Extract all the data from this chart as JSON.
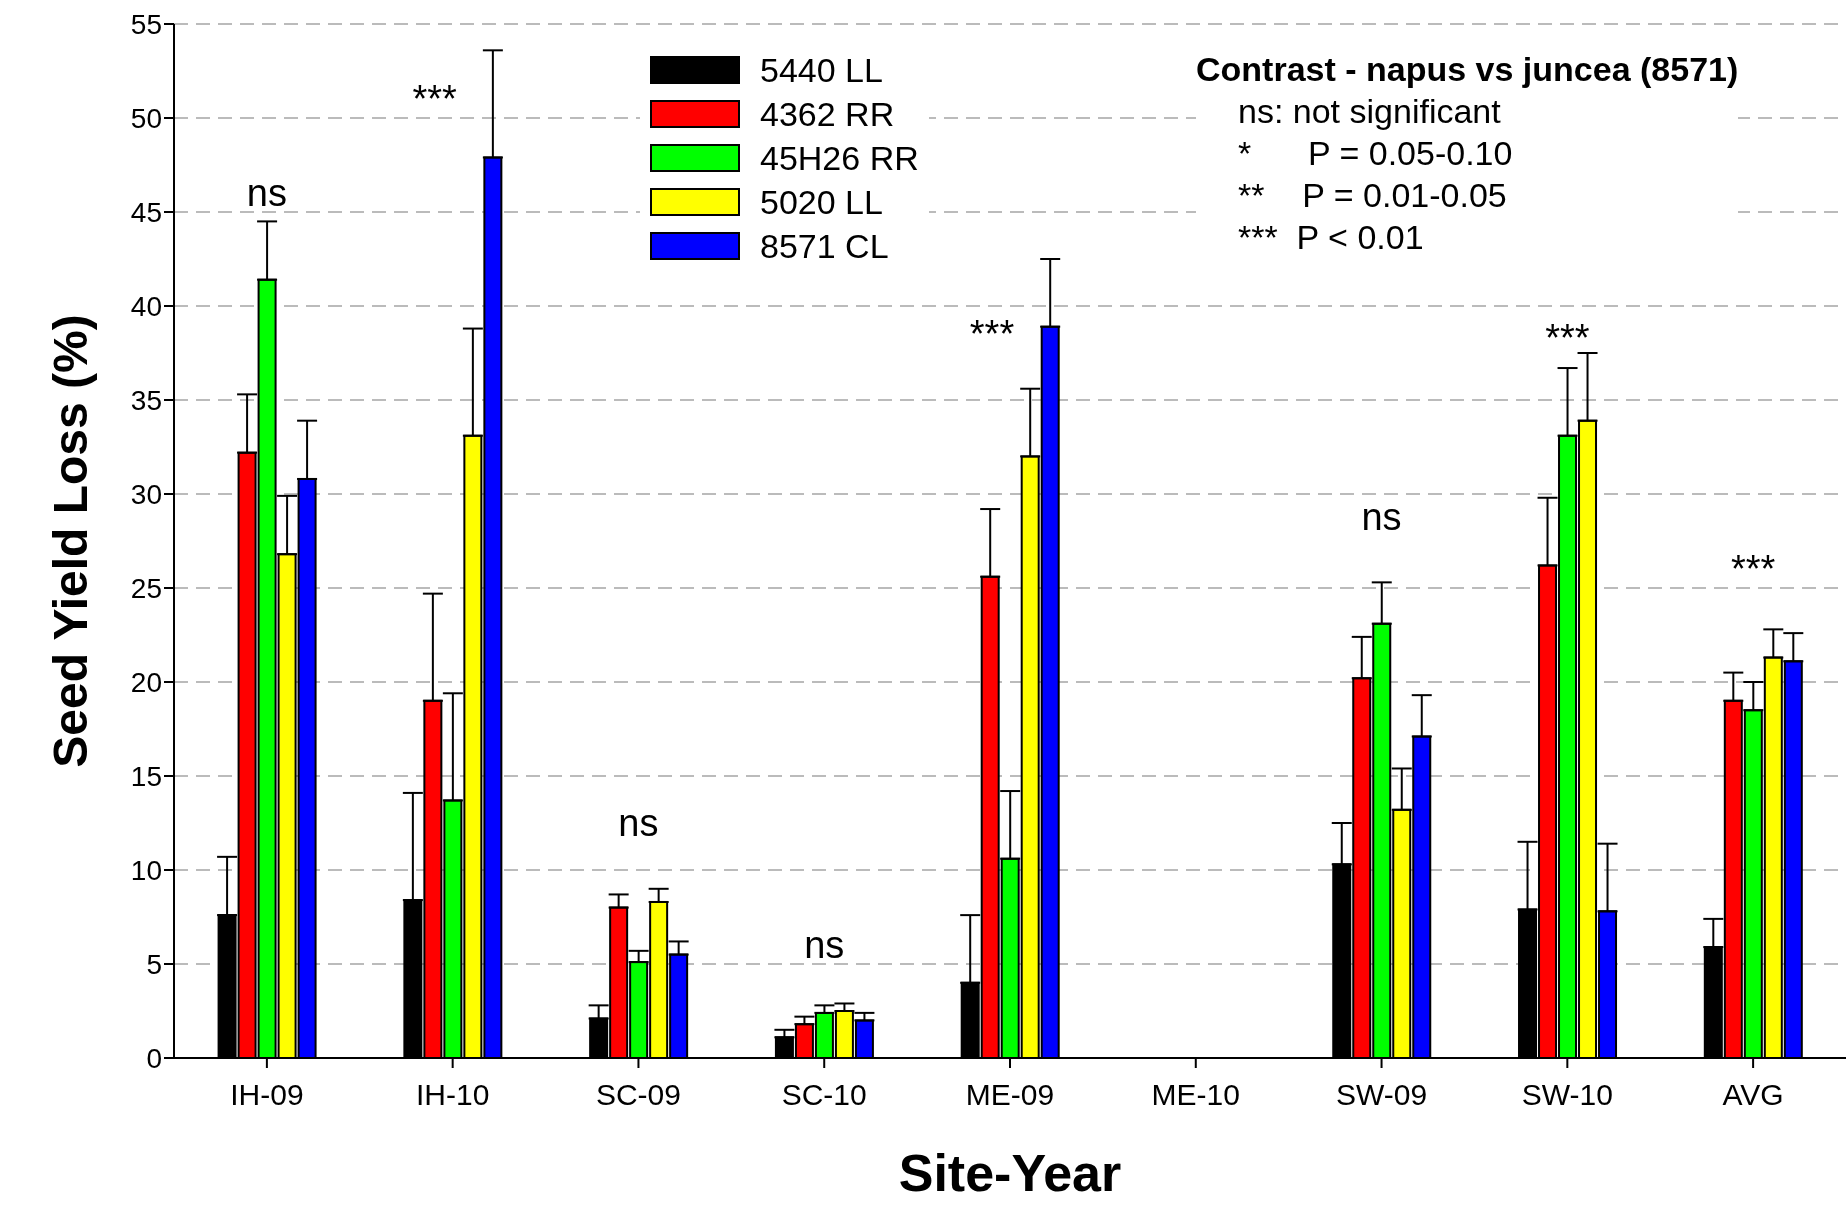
{
  "chart_data": {
    "type": "bar",
    "xlabel": "Site-Year",
    "ylabel": "Seed Yield Loss (%)",
    "categories": [
      "IH-09",
      "IH-10",
      "SC-09",
      "SC-10",
      "ME-09",
      "ME-10",
      "SW-09",
      "SW-10",
      "AVG"
    ],
    "series": [
      {
        "name": "5440 LL",
        "color": "#000000",
        "values": [
          7.6,
          8.4,
          2.1,
          1.1,
          4.0,
          null,
          10.3,
          7.9,
          5.9
        ],
        "errors": [
          [
            7.6,
            10.7
          ],
          [
            8.4,
            14.1
          ],
          [
            2.1,
            2.8
          ],
          [
            1.1,
            1.5
          ],
          [
            4.0,
            7.6
          ],
          null,
          [
            10.3,
            12.5
          ],
          [
            7.9,
            11.5
          ],
          [
            5.9,
            7.4
          ]
        ]
      },
      {
        "name": "4362 RR",
        "color": "#ff0000",
        "values": [
          32.2,
          19.0,
          8.0,
          1.8,
          25.6,
          null,
          20.2,
          26.2,
          19.0
        ],
        "errors": [
          [
            32.2,
            35.3
          ],
          [
            19.0,
            24.7
          ],
          [
            8.0,
            8.7
          ],
          [
            1.8,
            2.2
          ],
          [
            25.6,
            29.2
          ],
          null,
          [
            20.2,
            22.4
          ],
          [
            26.2,
            29.8
          ],
          [
            19.0,
            20.5
          ]
        ]
      },
      {
        "name": "45H26 RR",
        "color": "#00ff00",
        "values": [
          41.4,
          13.7,
          5.1,
          2.4,
          10.6,
          null,
          23.1,
          33.1,
          18.5
        ],
        "errors": [
          [
            41.4,
            44.5
          ],
          [
            13.7,
            19.4
          ],
          [
            5.1,
            5.7
          ],
          [
            2.4,
            2.8
          ],
          [
            10.6,
            14.2
          ],
          null,
          [
            23.1,
            25.3
          ],
          [
            33.1,
            36.7
          ],
          [
            18.5,
            20.0
          ]
        ]
      },
      {
        "name": "5020 LL",
        "color": "#ffff00",
        "values": [
          26.8,
          33.1,
          8.3,
          2.5,
          32.0,
          null,
          13.2,
          33.9,
          21.3
        ],
        "errors": [
          [
            26.8,
            29.9
          ],
          [
            33.1,
            38.8
          ],
          [
            8.3,
            9.0
          ],
          [
            2.5,
            2.9
          ],
          [
            32.0,
            35.6
          ],
          null,
          [
            13.2,
            15.4
          ],
          [
            33.9,
            37.5
          ],
          [
            21.3,
            22.8
          ]
        ]
      },
      {
        "name": "8571 CL",
        "color": "#0000ff",
        "values": [
          30.8,
          47.9,
          5.5,
          2.0,
          38.9,
          null,
          17.1,
          7.8,
          21.1
        ],
        "errors": [
          [
            30.8,
            33.9
          ],
          [
            47.9,
            53.6
          ],
          [
            5.5,
            6.2
          ],
          [
            2.0,
            2.4
          ],
          [
            38.9,
            42.5
          ],
          null,
          [
            17.1,
            19.3
          ],
          [
            7.8,
            11.4
          ],
          [
            21.1,
            22.6
          ]
        ]
      }
    ],
    "ylim": [
      0,
      55
    ],
    "yticks": [
      0,
      5,
      10,
      15,
      20,
      25,
      30,
      35,
      40,
      45,
      50,
      55
    ],
    "grid": "y",
    "legend": "top",
    "annotations": [
      "ns",
      "***",
      "ns",
      "ns",
      "***",
      "ns",
      "***",
      "***",
      "Contrast - napus vs juncea (8571)",
      "ns: not significant",
      "*      P = 0.05-0.10",
      "**    P = 0.01-0.05",
      "***  P < 0.01"
    ]
  }
}
